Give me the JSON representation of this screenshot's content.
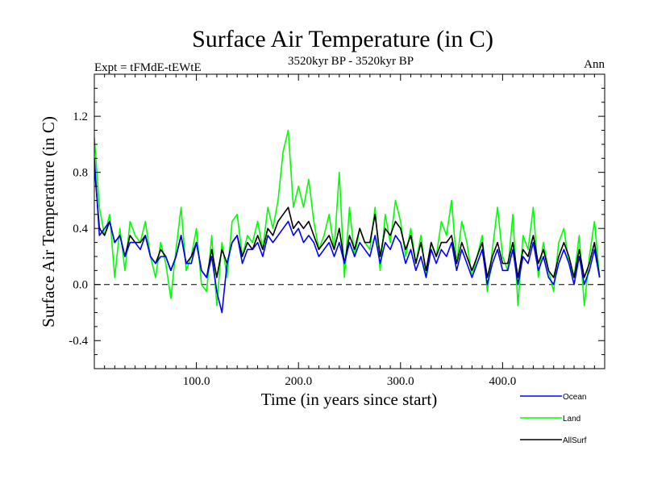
{
  "chart_data": {
    "type": "line",
    "title": "Surface Air Temperature (in C)",
    "subtitle_left": "Expt = tFMdE-tEWtE",
    "subtitle_center": "3520kyr BP - 3520kyr BP",
    "subtitle_right": "Ann",
    "xlabel": "Time (in years since start)",
    "ylabel": "Surface Air Temperature (in C)",
    "xlim": [
      0,
      500
    ],
    "ylim": [
      -0.6,
      1.5
    ],
    "x_ticks": [
      {
        "value": 100,
        "label": "100.0"
      },
      {
        "value": 200,
        "label": "200.0"
      },
      {
        "value": 300,
        "label": "300.0"
      },
      {
        "value": 400,
        "label": "400.0"
      }
    ],
    "y_ticks": [
      {
        "value": -0.4,
        "label": "-0.4"
      },
      {
        "value": 0.0,
        "label": "0.0"
      },
      {
        "value": 0.4,
        "label": "0.4"
      },
      {
        "value": 0.8,
        "label": "0.8"
      },
      {
        "value": 1.2,
        "label": "1.2"
      }
    ],
    "zero_line": true,
    "x_sample_step": 5,
    "series": [
      {
        "name": "Land",
        "color": "#00ff00",
        "values": [
          1.05,
          0.55,
          0.35,
          0.5,
          0.05,
          0.4,
          0.1,
          0.45,
          0.35,
          0.3,
          0.45,
          0.2,
          0.05,
          0.3,
          0.15,
          -0.1,
          0.25,
          0.55,
          0.1,
          0.2,
          0.4,
          0.0,
          -0.05,
          0.35,
          -0.15,
          0.3,
          0.05,
          0.45,
          0.5,
          0.2,
          0.35,
          0.3,
          0.45,
          0.25,
          0.55,
          0.4,
          0.6,
          0.95,
          1.1,
          0.55,
          0.7,
          0.55,
          0.75,
          0.45,
          0.25,
          0.35,
          0.5,
          0.25,
          0.8,
          0.05,
          0.55,
          0.2,
          0.4,
          0.3,
          0.25,
          0.55,
          0.1,
          0.5,
          0.3,
          0.6,
          0.45,
          0.2,
          0.4,
          0.15,
          0.35,
          0.05,
          0.3,
          0.2,
          0.45,
          0.35,
          0.6,
          0.15,
          0.45,
          0.3,
          0.05,
          0.2,
          0.35,
          -0.05,
          0.25,
          0.55,
          0.2,
          0.1,
          0.5,
          -0.15,
          0.35,
          0.25,
          0.55,
          0.05,
          0.3,
          0.1,
          -0.05,
          0.3,
          0.4,
          0.15,
          0.05,
          0.35,
          -0.15,
          0.2,
          0.45,
          0.05
        ]
      },
      {
        "name": "AllSurf",
        "color": "#000000",
        "values": [
          0.85,
          0.4,
          0.35,
          0.45,
          0.3,
          0.35,
          0.2,
          0.35,
          0.3,
          0.3,
          0.35,
          0.2,
          0.15,
          0.25,
          0.2,
          0.1,
          0.2,
          0.35,
          0.15,
          0.2,
          0.3,
          0.1,
          0.05,
          0.25,
          0.05,
          0.25,
          0.15,
          0.3,
          0.35,
          0.2,
          0.3,
          0.25,
          0.35,
          0.25,
          0.4,
          0.35,
          0.45,
          0.5,
          0.55,
          0.4,
          0.45,
          0.4,
          0.45,
          0.35,
          0.25,
          0.3,
          0.35,
          0.25,
          0.4,
          0.15,
          0.35,
          0.25,
          0.4,
          0.3,
          0.3,
          0.5,
          0.2,
          0.4,
          0.35,
          0.45,
          0.4,
          0.25,
          0.35,
          0.15,
          0.3,
          0.1,
          0.3,
          0.2,
          0.3,
          0.3,
          0.35,
          0.15,
          0.3,
          0.2,
          0.1,
          0.2,
          0.3,
          0.05,
          0.2,
          0.3,
          0.15,
          0.15,
          0.3,
          0.05,
          0.25,
          0.2,
          0.35,
          0.15,
          0.25,
          0.1,
          0.05,
          0.2,
          0.3,
          0.2,
          0.05,
          0.25,
          0.05,
          0.15,
          0.3,
          0.05
        ]
      },
      {
        "name": "Ocean",
        "color": "#0000ff",
        "values": [
          0.9,
          0.35,
          0.4,
          0.45,
          0.3,
          0.35,
          0.2,
          0.3,
          0.3,
          0.25,
          0.35,
          0.2,
          0.15,
          0.2,
          0.2,
          0.1,
          0.2,
          0.35,
          0.15,
          0.15,
          0.3,
          0.1,
          0.05,
          0.2,
          -0.05,
          -0.2,
          0.15,
          0.3,
          0.35,
          0.15,
          0.25,
          0.25,
          0.3,
          0.2,
          0.35,
          0.3,
          0.35,
          0.4,
          0.45,
          0.35,
          0.4,
          0.3,
          0.35,
          0.3,
          0.2,
          0.25,
          0.3,
          0.2,
          0.3,
          0.15,
          0.3,
          0.2,
          0.3,
          0.25,
          0.2,
          0.35,
          0.15,
          0.3,
          0.25,
          0.35,
          0.3,
          0.15,
          0.25,
          0.1,
          0.2,
          0.05,
          0.25,
          0.15,
          0.25,
          0.2,
          0.3,
          0.1,
          0.25,
          0.15,
          0.05,
          0.15,
          0.25,
          0.0,
          0.15,
          0.25,
          0.1,
          0.1,
          0.25,
          0.0,
          0.2,
          0.15,
          0.3,
          0.1,
          0.2,
          0.05,
          0.0,
          0.15,
          0.25,
          0.15,
          0.0,
          0.2,
          0.0,
          0.1,
          0.25,
          0.05
        ]
      }
    ],
    "legend": [
      {
        "name": "Ocean",
        "color": "#0000ff"
      },
      {
        "name": "Land",
        "color": "#00ff00"
      },
      {
        "name": "AllSurf",
        "color": "#000000"
      }
    ],
    "legend_position": "bottom-right"
  }
}
